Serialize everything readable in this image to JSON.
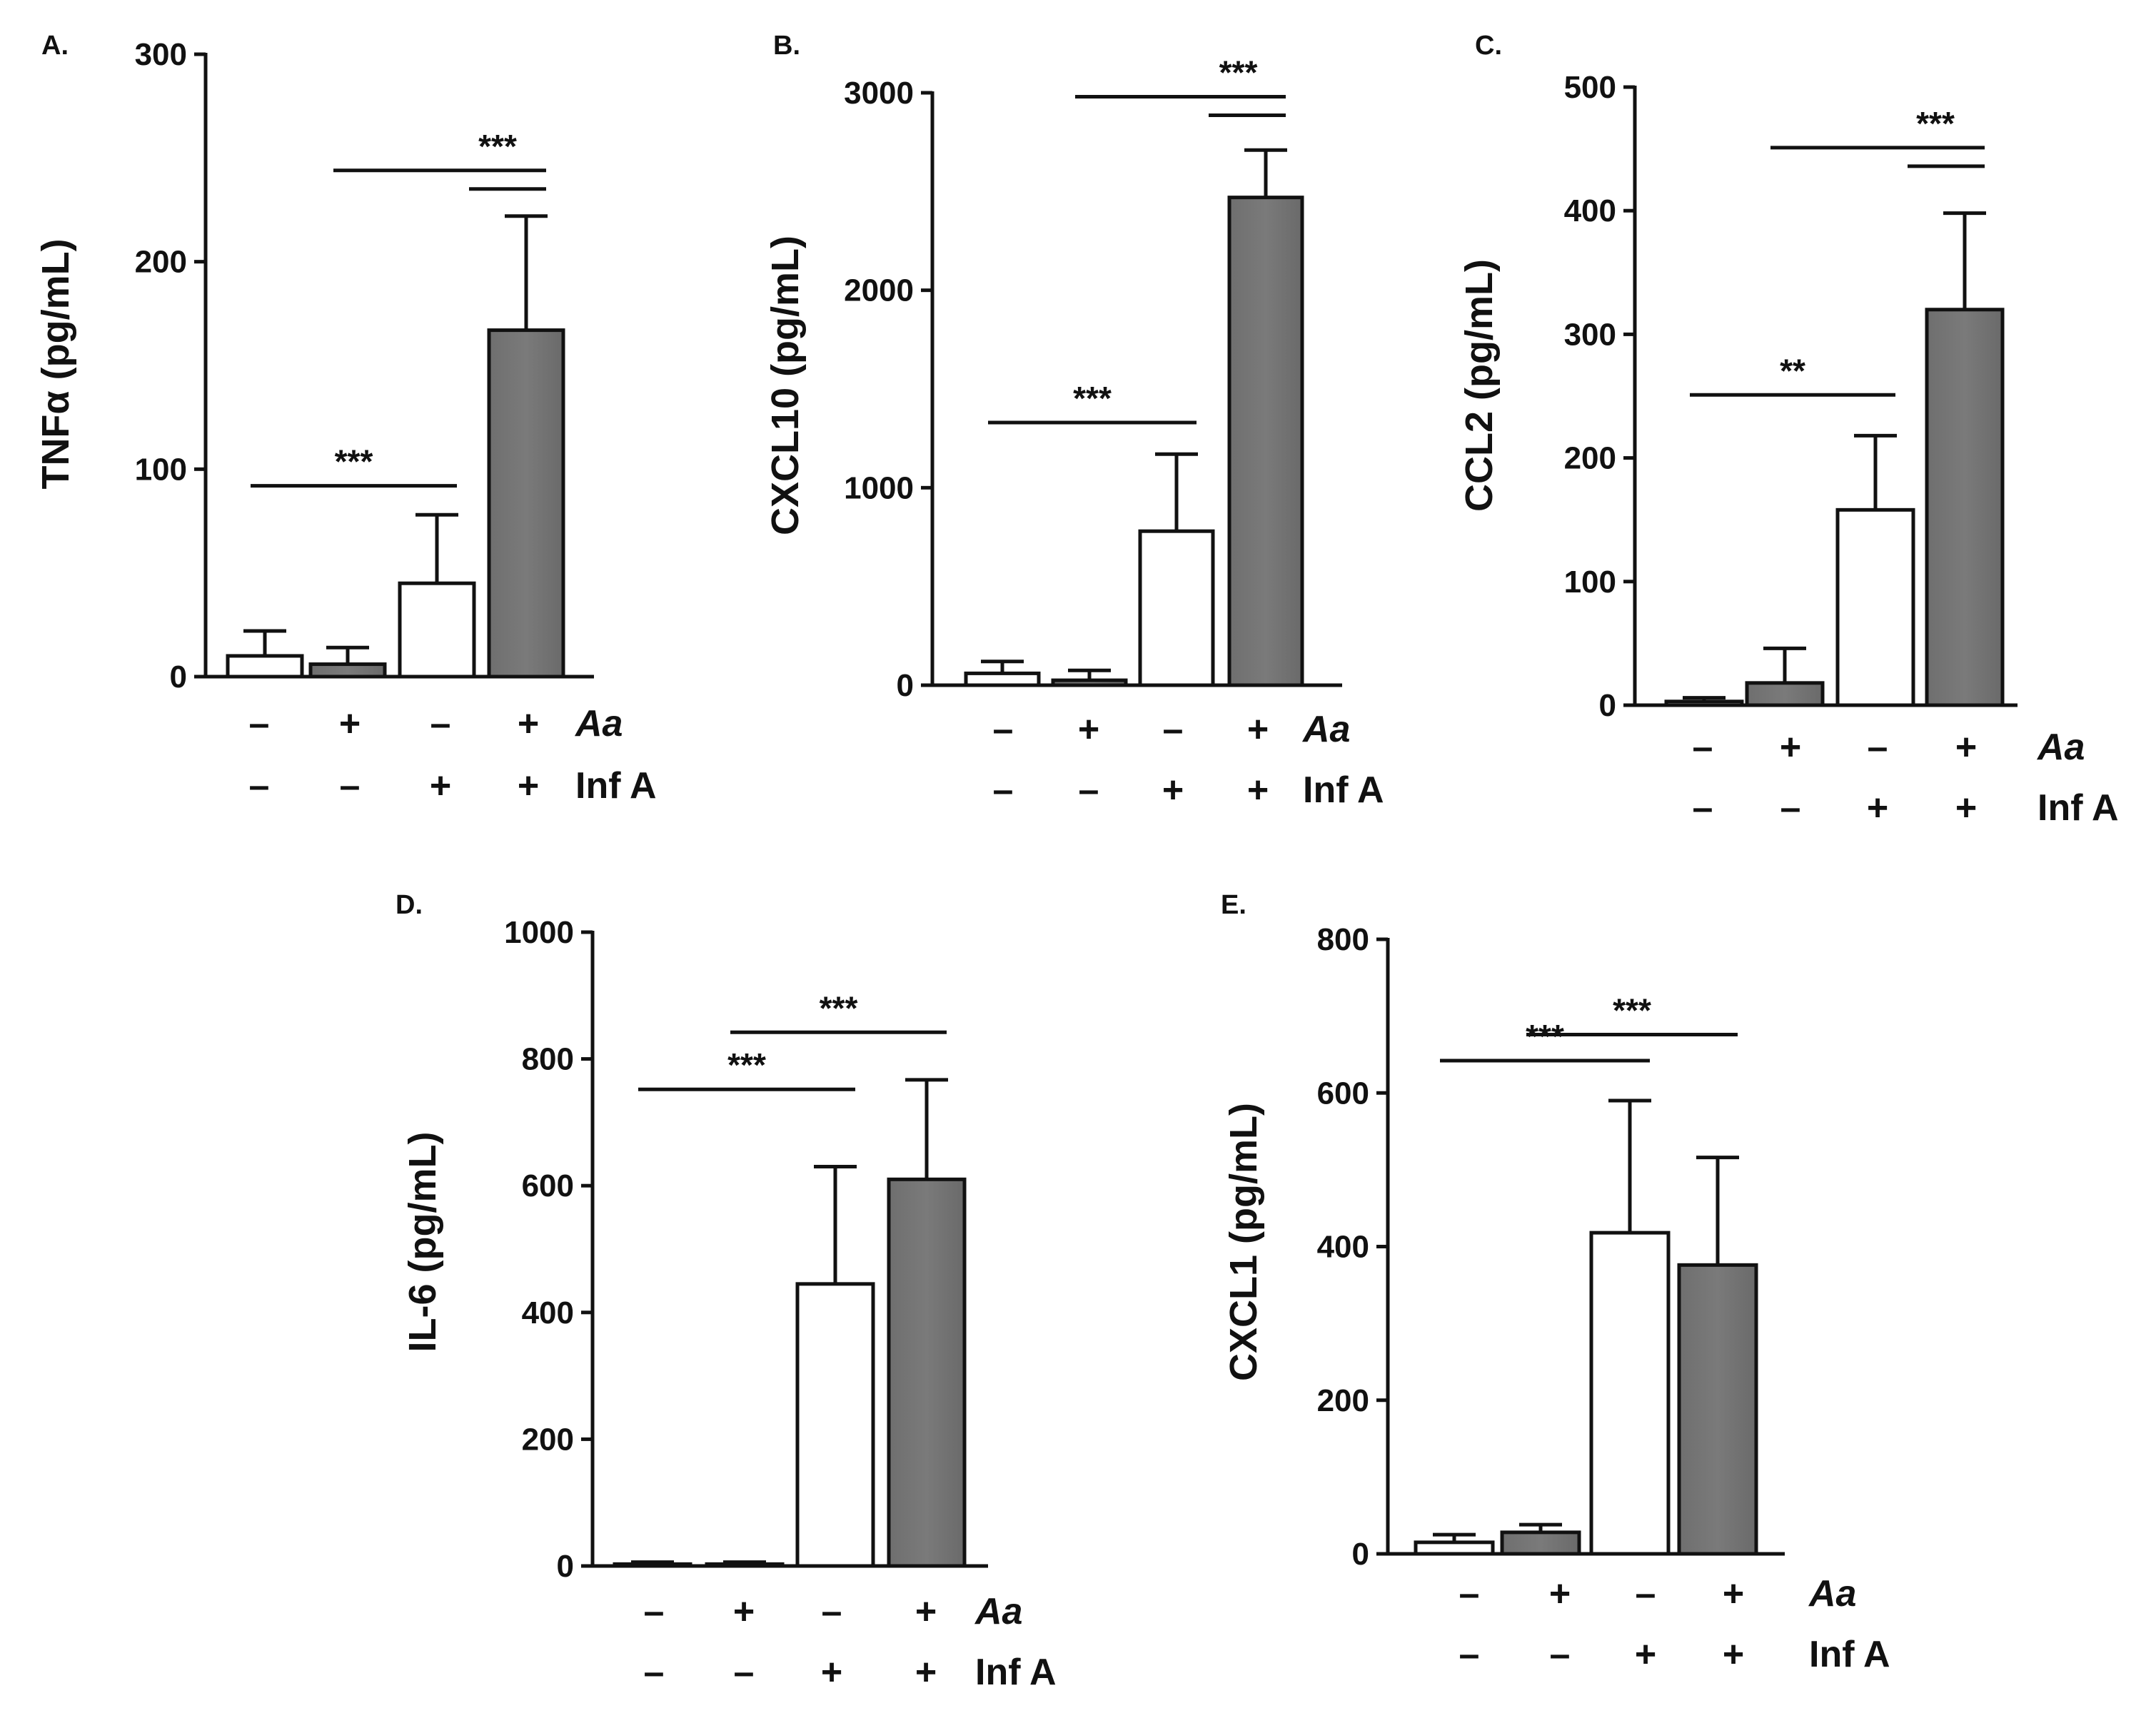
{
  "colors": {
    "control": "#ffffff",
    "aa": "#7a7a7a",
    "outline": "#111111"
  },
  "conditions": {
    "row1": {
      "values": [
        "–",
        "+",
        "–",
        "+"
      ],
      "label": "Aa"
    },
    "row2": {
      "values": [
        "–",
        "–",
        "+",
        "+"
      ],
      "label": "Inf A"
    }
  },
  "chart_data": [
    {
      "id": "A",
      "panel_label": "A.",
      "type": "bar",
      "ylabel": "TNFα (pg/mL)",
      "ylim": [
        0,
        300
      ],
      "yticks": [
        0,
        100,
        200,
        300
      ],
      "values": [
        10,
        6,
        45,
        167
      ],
      "errors": [
        12,
        8,
        33,
        55
      ],
      "fills": [
        "control",
        "aa",
        "control",
        "aa"
      ],
      "significance": [
        {
          "from": 0,
          "to": 2,
          "label": "***",
          "level": 92
        },
        {
          "from": 1,
          "to": 3,
          "label": "***",
          "level": 244,
          "double": true
        }
      ]
    },
    {
      "id": "B",
      "panel_label": "B.",
      "type": "bar",
      "ylabel": "CXCL10 (pg/mL)",
      "ylim": [
        0,
        3000
      ],
      "yticks": [
        0,
        1000,
        2000,
        3000
      ],
      "values": [
        60,
        25,
        780,
        2470
      ],
      "errors": [
        60,
        50,
        390,
        240
      ],
      "fills": [
        "control",
        "aa",
        "control",
        "aa"
      ],
      "significance": [
        {
          "from": 0,
          "to": 2,
          "label": "***",
          "level": 1330
        },
        {
          "from": 1,
          "to": 3,
          "label": "***",
          "level": 2980,
          "double": true
        }
      ]
    },
    {
      "id": "C",
      "panel_label": "C.",
      "type": "bar",
      "ylabel": "CCL2 (pg/mL)",
      "ylim": [
        0,
        500
      ],
      "yticks": [
        0,
        100,
        200,
        300,
        400,
        500
      ],
      "values": [
        3,
        18,
        158,
        320
      ],
      "errors": [
        3,
        28,
        60,
        78
      ],
      "fills": [
        "control",
        "aa",
        "control",
        "aa"
      ],
      "significance": [
        {
          "from": 0,
          "to": 2,
          "label": "**",
          "level": 251
        },
        {
          "from": 1,
          "to": 3,
          "label": "***",
          "level": 451,
          "double": true
        }
      ]
    },
    {
      "id": "D",
      "panel_label": "D.",
      "type": "bar",
      "ylabel": "IL-6 (pg/mL)",
      "ylim": [
        0,
        1000
      ],
      "yticks": [
        0,
        200,
        400,
        600,
        800,
        1000
      ],
      "values": [
        3,
        3,
        445,
        610
      ],
      "errors": [
        3,
        3,
        185,
        157
      ],
      "fills": [
        "control",
        "aa",
        "control",
        "aa"
      ],
      "significance": [
        {
          "from": 0,
          "to": 2,
          "label": "***",
          "level": 752
        },
        {
          "from": 1,
          "to": 3,
          "label": "***",
          "level": 842
        }
      ]
    },
    {
      "id": "E",
      "panel_label": "E.",
      "type": "bar",
      "ylabel": "CXCL1 (pg/mL)",
      "ylim": [
        0,
        800
      ],
      "yticks": [
        0,
        200,
        400,
        600,
        800
      ],
      "values": [
        15,
        28,
        418,
        376
      ],
      "errors": [
        10,
        10,
        172,
        140
      ],
      "fills": [
        "control",
        "aa",
        "control",
        "aa"
      ],
      "significance": [
        {
          "from": 0,
          "to": 2,
          "label": "***",
          "level": 642
        },
        {
          "from": 1,
          "to": 3,
          "label": "***",
          "level": 676
        }
      ]
    }
  ]
}
